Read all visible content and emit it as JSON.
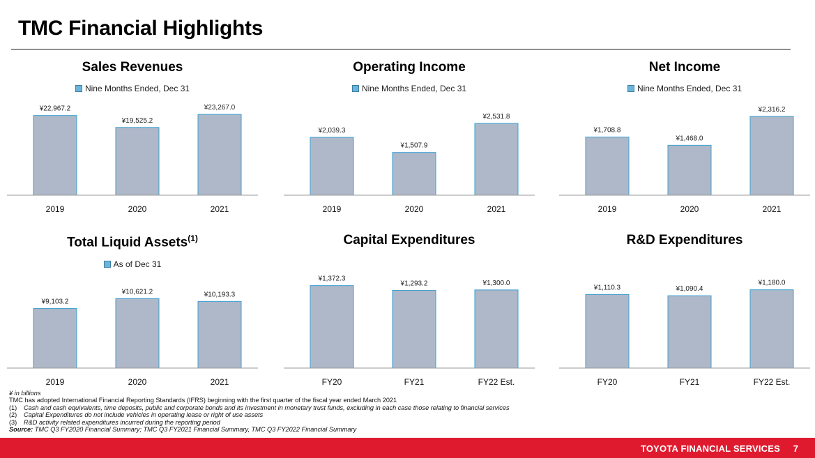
{
  "page": {
    "title": "TMC Financial Highlights",
    "footer_brand": "TOYOTA FINANCIAL SERVICES",
    "page_number": "7"
  },
  "colors": {
    "bar_fill": "#aeb8c8",
    "bar_stroke": "#3aa0d2",
    "legend_swatch": "#6db5d8",
    "footer_red": "#e01a2e"
  },
  "chart_data": [
    {
      "type": "bar",
      "title": "Sales Revenues",
      "legend": "Nine Months Ended, Dec 31",
      "categories": [
        "2019",
        "2020",
        "2021"
      ],
      "values": [
        22967.2,
        19525.2,
        23267.0
      ],
      "labels": [
        "¥22,967.2",
        "¥19,525.2",
        "¥23,267.0"
      ],
      "ylim": [
        0,
        24500
      ]
    },
    {
      "type": "bar",
      "title": "Operating Income",
      "legend": "Nine Months Ended, Dec 31",
      "categories": [
        "2019",
        "2020",
        "2021"
      ],
      "values": [
        2039.3,
        1507.9,
        2531.8
      ],
      "labels": [
        "¥2,039.3",
        "¥1,507.9",
        "¥2,531.8"
      ],
      "ylim": [
        0,
        3000
      ]
    },
    {
      "type": "bar",
      "title": "Net Income",
      "legend": "Nine Months Ended, Dec 31",
      "categories": [
        "2019",
        "2020",
        "2021"
      ],
      "values": [
        1708.8,
        1468.0,
        2316.2
      ],
      "labels": [
        "¥1,708.8",
        "¥1,468.0",
        "¥2,316.2"
      ],
      "ylim": [
        0,
        2500
      ]
    },
    {
      "type": "bar",
      "title": "Total Liquid Assets",
      "title_sup": "(1)",
      "legend": "As of Dec 31",
      "categories": [
        "2019",
        "2020",
        "2021"
      ],
      "values": [
        9103.2,
        10621.2,
        10193.3
      ],
      "labels": [
        "¥9,103.2",
        "¥10,621.2",
        "¥10,193.3"
      ],
      "ylim": [
        0,
        13000
      ]
    },
    {
      "type": "bar",
      "title": "Capital Expenditures",
      "legend": "",
      "categories": [
        "FY20",
        "FY21",
        "FY22 Est."
      ],
      "values": [
        1372.3,
        1293.2,
        1300.0
      ],
      "labels": [
        "¥1,372.3",
        "¥1,293.2",
        "¥1,300.0"
      ],
      "ylim": [
        0,
        1600
      ]
    },
    {
      "type": "bar",
      "title": "R&D Expenditures",
      "legend": "",
      "categories": [
        "FY20",
        "FY21",
        "FY22 Est."
      ],
      "values": [
        1110.3,
        1090.4,
        1180.0
      ],
      "labels": [
        "¥1,110.3",
        "¥1,090.4",
        "¥1,180.0"
      ],
      "ylim": [
        0,
        1450
      ]
    }
  ],
  "footnotes": {
    "units": "¥ in billions",
    "ifrs": "TMC has adopted International Financial Reporting Standards (IFRS) beginning with the first quarter of the fiscal year ended March 2021",
    "notes": [
      {
        "num": "(1)",
        "text": "Cash and cash equivalents, time deposits, public and corporate bonds and its investment in monetary trust funds, excluding in each case those relating to financial services"
      },
      {
        "num": "(2)",
        "text": "Capital Expenditures do not include vehicles in operating lease or right of use assets"
      },
      {
        "num": "(3)",
        "text": "R&D activity related expenditures incurred during the reporting period"
      }
    ],
    "source_label": "Source:",
    "source_text": "TMC Q3 FY2020 Financial Summary; TMC Q3 FY2021 Financial Summary, TMC Q3 FY2022 Financial Summary"
  }
}
